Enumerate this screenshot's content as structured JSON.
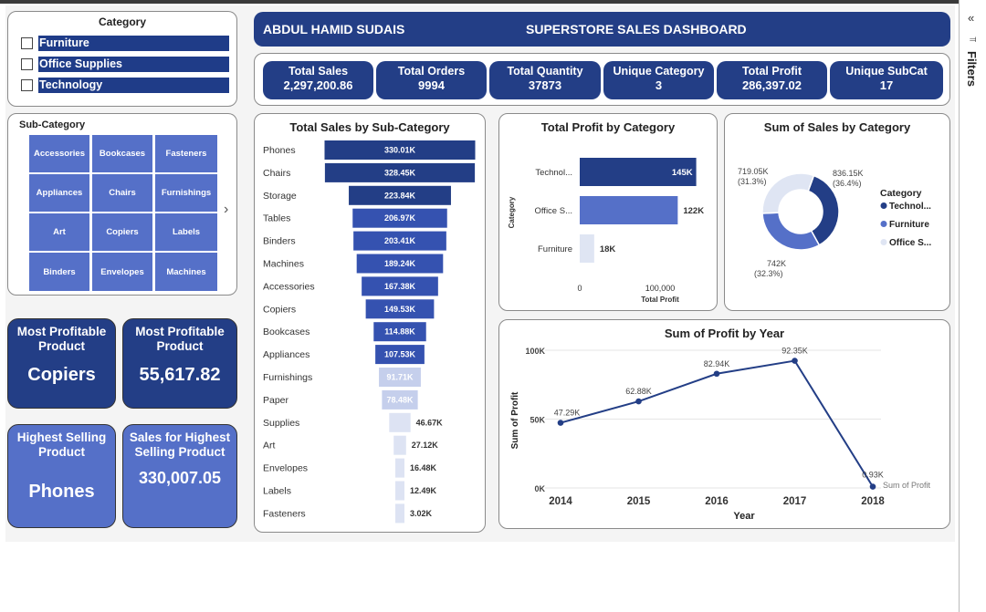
{
  "colors": {
    "dark": "#233e86",
    "mid": "#5570c8",
    "light": "#dfe5f3"
  },
  "header": {
    "author": "ABDUL HAMID SUDAIS",
    "title": "SUPERSTORE SALES DASHBOARD"
  },
  "category_slicer": {
    "title": "Category",
    "items": [
      {
        "label": "Furniture"
      },
      {
        "label": "Office Supplies"
      },
      {
        "label": "Technology"
      }
    ]
  },
  "subcategory_slicer": {
    "title": "Sub-Category",
    "items": [
      "Accessories",
      "Bookcases",
      "Fasteners",
      "Appliances",
      "Chairs",
      "Furnishings",
      "Art",
      "Copiers",
      "Labels",
      "Binders",
      "Envelopes",
      "Machines"
    ]
  },
  "kpis": [
    {
      "label": "Total Sales",
      "value": "2,297,200.86"
    },
    {
      "label": "Total Orders",
      "value": "9994"
    },
    {
      "label": "Total Quantity",
      "value": "37873"
    },
    {
      "label": "Unique Category",
      "value": "3"
    },
    {
      "label": "Total Profit",
      "value": "286,397.02"
    },
    {
      "label": "Unique SubCat",
      "value": "17"
    }
  ],
  "tiles": {
    "most_profitable_product": {
      "label": "Most Profitable Product",
      "value": "Copiers"
    },
    "most_profitable_value": {
      "label": "Most Profitable Product",
      "value": "55,617.82"
    },
    "highest_selling_product": {
      "label": "Highest Selling Product",
      "value": "Phones"
    },
    "highest_selling_sales": {
      "label": "Sales for Highest Selling Product",
      "value": "330,007.05"
    }
  },
  "filters": {
    "label": "Filters"
  },
  "chart_data": [
    {
      "type": "bar",
      "title": "Total Sales by Sub-Category",
      "categories": [
        "Phones",
        "Chairs",
        "Storage",
        "Tables",
        "Binders",
        "Machines",
        "Accessories",
        "Copiers",
        "Bookcases",
        "Appliances",
        "Furnishings",
        "Paper",
        "Supplies",
        "Art",
        "Envelopes",
        "Labels",
        "Fasteners"
      ],
      "values": [
        330010,
        328450,
        223840,
        206970,
        203410,
        189240,
        167380,
        149530,
        114880,
        107530,
        91710,
        78480,
        46670,
        27120,
        16480,
        12490,
        3020
      ],
      "labels": [
        "330.01K",
        "328.45K",
        "223.84K",
        "206.97K",
        "203.41K",
        "189.24K",
        "167.38K",
        "149.53K",
        "114.88K",
        "107.53K",
        "91.71K",
        "78.48K",
        "46.67K",
        "27.12K",
        "16.48K",
        "12.49K",
        "3.02K"
      ]
    },
    {
      "type": "bar",
      "title": "Total Profit by Category",
      "categories": [
        "Technol...",
        "Office S...",
        "Furniture"
      ],
      "values": [
        145000,
        122000,
        18000
      ],
      "labels": [
        "145K",
        "122K",
        "18K"
      ],
      "xlabel": "Total Profit",
      "ylabel": "Category",
      "xticks": [
        "0",
        "100,000"
      ]
    },
    {
      "type": "pie",
      "title": "Sum of Sales by Category",
      "legend_title": "Category",
      "slices": [
        {
          "name": "Technol...",
          "value": 836150,
          "label": "836.15K",
          "pct": "(36.4%)"
        },
        {
          "name": "Furniture",
          "value": 742000,
          "label": "742K",
          "pct": "(32.3%)"
        },
        {
          "name": "Office S...",
          "value": 719050,
          "label": "719.05K",
          "pct": "(31.3%)"
        }
      ]
    },
    {
      "type": "line",
      "title": "Sum of Profit by Year",
      "x": [
        "2014",
        "2015",
        "2016",
        "2017",
        "2018"
      ],
      "series": [
        {
          "name": "Sum of Profit",
          "values": [
            47290,
            62880,
            82940,
            92350,
            930
          ]
        }
      ],
      "labels": [
        "47.29K",
        "62.88K",
        "82.94K",
        "92.35K",
        "0.93K"
      ],
      "xlabel": "Year",
      "ylabel": "Sum of Profit",
      "yticks": [
        "0K",
        "50K",
        "100K"
      ],
      "ylim": [
        0,
        100000
      ]
    }
  ]
}
